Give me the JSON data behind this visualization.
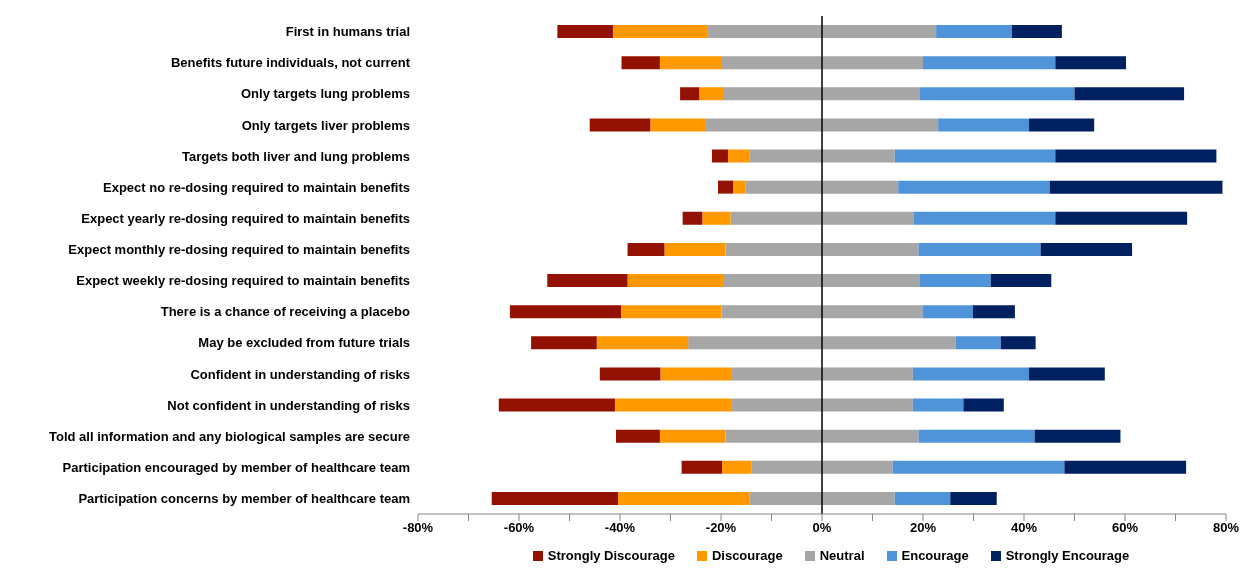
{
  "chart_data": {
    "type": "bar",
    "orientation": "horizontal",
    "stacked": true,
    "categories": [
      "First in humans trial",
      "Benefits future individuals, not current",
      "Only targets lung problems",
      "Only targets liver problems",
      "Targets both liver and lung problems",
      "Expect no re-dosing required to maintain benefits",
      "Expect yearly re-dosing required to maintain benefits",
      "Expect monthly re-dosing required to maintain benefits",
      "Expect weekly re-dosing  required to maintain benefits",
      "There is a chance of receiving a placebo",
      "May be excluded from future trials",
      "Confident in understanding of risks",
      "Not confident in understanding of risks",
      "Told all information and any biological samples are secure",
      "Participation encouraged by member of healthcare team",
      "Participation concerns by member of healthcare team"
    ],
    "series": [
      {
        "name": "Neutral",
        "color": "#a6a6a6",
        "values": [
          -22.6,
          -20.0,
          -19.4,
          -23.0,
          -14.4,
          -15.1,
          -18.1,
          -19.1,
          -19.4,
          -19.9,
          -26.5,
          -18.0,
          -18.0,
          -19.1,
          -14.0,
          -14.4
        ]
      },
      {
        "name": "Discourage",
        "color": "#ff9900",
        "values": [
          -18.8,
          -12.1,
          -4.9,
          -11.0,
          -4.2,
          -2.5,
          -5.6,
          -12.1,
          -19.1,
          -19.9,
          -18.1,
          -14.0,
          -23.0,
          -13.0,
          -5.8,
          -26.0
        ]
      },
      {
        "name": "Strongly Discourage",
        "color": "#931100",
        "values": [
          -11.0,
          -7.6,
          -3.8,
          -12.0,
          -3.2,
          -3.0,
          -3.9,
          -7.3,
          -15.9,
          -22.0,
          -13.0,
          -12.0,
          -23.0,
          -8.7,
          -8.0,
          -25.0
        ]
      },
      {
        "color": "#a6a6a6",
        "values": [
          22.6,
          20.0,
          19.4,
          23.0,
          14.4,
          15.1,
          18.1,
          19.1,
          19.4,
          19.9,
          26.5,
          18.0,
          18.0,
          19.1,
          14.0,
          14.4
        ]
      },
      {
        "name": "Encourage",
        "color": "#4f93d8",
        "values": [
          15.0,
          26.2,
          30.6,
          18.0,
          31.8,
          30.0,
          28.1,
          24.2,
          14.0,
          10.0,
          8.9,
          23.0,
          10.0,
          23.0,
          34.0,
          11.0
        ]
      },
      {
        "name": "Strongly Encourage",
        "color": "#002060",
        "values": [
          9.9,
          14.0,
          21.7,
          12.9,
          31.9,
          34.2,
          26.1,
          18.1,
          12.0,
          8.3,
          6.9,
          15.0,
          8.0,
          17.0,
          24.1,
          9.2
        ]
      }
    ],
    "xlim": [
      -80,
      80
    ],
    "xticks": [
      {
        "value": -80,
        "label": "-80%"
      },
      {
        "value": -70,
        "label": null
      },
      {
        "value": -60,
        "label": "-60%"
      },
      {
        "value": -50,
        "label": null
      },
      {
        "value": -40,
        "label": "-40%"
      },
      {
        "value": -30,
        "label": null
      },
      {
        "value": -20,
        "label": "-20%"
      },
      {
        "value": -10,
        "label": null
      },
      {
        "value": 0,
        "label": "0%"
      },
      {
        "value": 10,
        "label": null
      },
      {
        "value": 20,
        "label": "20%"
      },
      {
        "value": 30,
        "label": null
      },
      {
        "value": 40,
        "label": "40%"
      },
      {
        "value": 50,
        "label": null
      },
      {
        "value": 60,
        "label": "60%"
      },
      {
        "value": 70,
        "label": null
      },
      {
        "value": 80,
        "label": "80%"
      }
    ],
    "ref_lines": [
      {
        "axis": "x",
        "value": 0,
        "color": "#000000"
      }
    ],
    "grid": false,
    "legend": "bottom"
  }
}
